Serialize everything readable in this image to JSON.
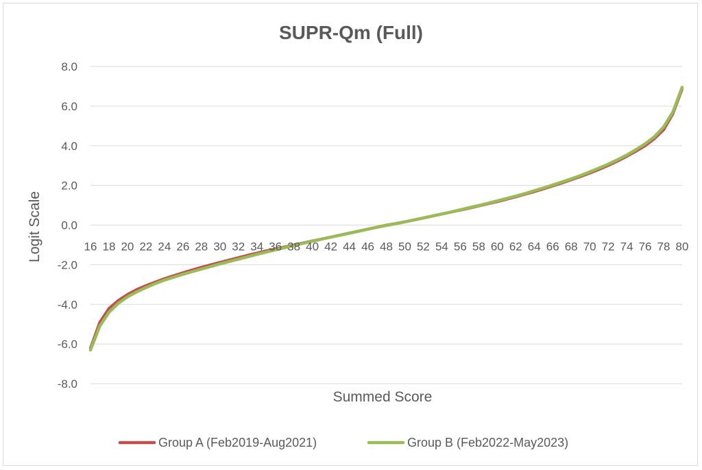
{
  "chart_data": {
    "type": "line",
    "title": "SUPR-Qm (Full)",
    "xlabel": "Summed Score",
    "ylabel": "Logit Scale",
    "ylim": [
      -8,
      8
    ],
    "y_ticks": [
      "8.0",
      "6.0",
      "4.0",
      "2.0",
      "0.0",
      "-2.0",
      "-4.0",
      "-6.0",
      "-8.0"
    ],
    "x_ticks": [
      "16",
      "18",
      "20",
      "22",
      "24",
      "26",
      "28",
      "30",
      "32",
      "34",
      "36",
      "38",
      "40",
      "42",
      "44",
      "46",
      "48",
      "50",
      "52",
      "54",
      "56",
      "58",
      "60",
      "62",
      "64",
      "66",
      "68",
      "70",
      "72",
      "74",
      "76",
      "78",
      "80"
    ],
    "grid": true,
    "legend_position": "bottom",
    "x": [
      16,
      17,
      18,
      19,
      20,
      21,
      22,
      23,
      24,
      25,
      26,
      27,
      28,
      29,
      30,
      31,
      32,
      33,
      34,
      35,
      36,
      37,
      38,
      39,
      40,
      41,
      42,
      43,
      44,
      45,
      46,
      47,
      48,
      49,
      50,
      51,
      52,
      53,
      54,
      55,
      56,
      57,
      58,
      59,
      60,
      61,
      62,
      63,
      64,
      65,
      66,
      67,
      68,
      69,
      70,
      71,
      72,
      73,
      74,
      75,
      76,
      77,
      78,
      79,
      80
    ],
    "series": [
      {
        "name": "Group A (Feb2019-Aug2021)",
        "color": "#c0504d",
        "values": [
          -6.2,
          -4.9,
          -4.2,
          -3.8,
          -3.5,
          -3.25,
          -3.05,
          -2.87,
          -2.7,
          -2.55,
          -2.4,
          -2.26,
          -2.13,
          -2.0,
          -1.88,
          -1.76,
          -1.64,
          -1.52,
          -1.41,
          -1.3,
          -1.2,
          -1.1,
          -1.0,
          -0.9,
          -0.8,
          -0.7,
          -0.6,
          -0.5,
          -0.4,
          -0.3,
          -0.2,
          -0.1,
          0.0,
          0.08,
          0.17,
          0.26,
          0.35,
          0.45,
          0.55,
          0.65,
          0.75,
          0.85,
          0.96,
          1.07,
          1.18,
          1.3,
          1.42,
          1.55,
          1.68,
          1.82,
          1.97,
          2.12,
          2.28,
          2.44,
          2.62,
          2.8,
          3.0,
          3.22,
          3.46,
          3.72,
          4.0,
          4.35,
          4.8,
          5.6,
          6.85
        ]
      },
      {
        "name": "Group B (Feb2022-May2023)",
        "color": "#9bbb59",
        "values": [
          -6.3,
          -5.1,
          -4.4,
          -3.95,
          -3.62,
          -3.37,
          -3.15,
          -2.95,
          -2.78,
          -2.63,
          -2.48,
          -2.35,
          -2.22,
          -2.09,
          -1.96,
          -1.84,
          -1.72,
          -1.6,
          -1.48,
          -1.36,
          -1.25,
          -1.14,
          -1.03,
          -0.92,
          -0.82,
          -0.71,
          -0.61,
          -0.51,
          -0.41,
          -0.31,
          -0.21,
          -0.11,
          -0.02,
          0.07,
          0.16,
          0.26,
          0.36,
          0.46,
          0.56,
          0.66,
          0.77,
          0.88,
          0.99,
          1.1,
          1.22,
          1.34,
          1.46,
          1.59,
          1.73,
          1.87,
          2.02,
          2.17,
          2.33,
          2.5,
          2.68,
          2.87,
          3.07,
          3.29,
          3.53,
          3.8,
          4.1,
          4.45,
          4.95,
          5.7,
          6.95
        ]
      }
    ]
  }
}
